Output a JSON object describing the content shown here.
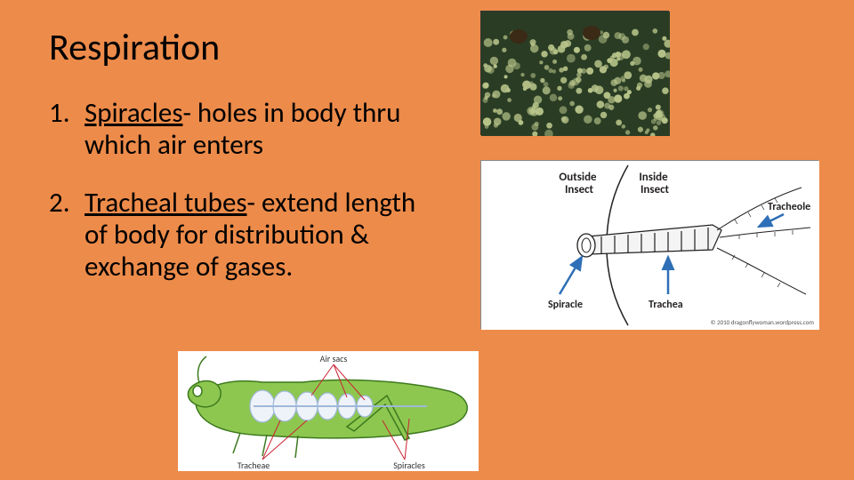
{
  "title": "Respiration",
  "items": [
    {
      "num": "1.",
      "term": "Spiracles",
      "rest": "- holes in body thru which air enters"
    },
    {
      "num": "2.",
      "term": "Tracheal tubes",
      "rest": "- extend length of body for distribution & exchange of gases."
    }
  ],
  "diagrams": {
    "spiracles_photo": {
      "bg": "#2a3d24",
      "bumps_color": "#b8c48a",
      "eye_color": "#3b2a15"
    },
    "tracheal_detail": {
      "bg": "#ffffff",
      "line_color": "#231f20",
      "arrow_color": "#2e6fb7",
      "labels": {
        "outside": "Outside\nInsect",
        "inside": "Inside\nInsect",
        "spiracle": "Spiracle",
        "trachea": "Trachea",
        "tracheole": "Tracheole"
      },
      "credit": "© 2010 dragonflywoman.wordpress.com"
    },
    "grasshopper": {
      "bg": "#ffffff",
      "body_fill": "#8dc750",
      "body_stroke": "#3d7a1e",
      "tube_color": "#9fb8d8",
      "labels": {
        "airsacs": "Air sacs",
        "tracheae": "Tracheae",
        "spiracles": "Spiracles"
      }
    }
  }
}
